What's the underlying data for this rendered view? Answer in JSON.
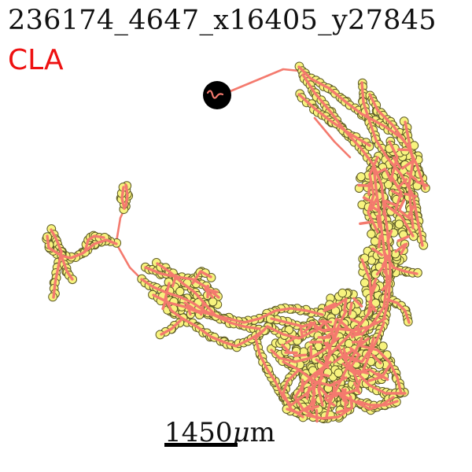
{
  "header": {
    "specimen_id": "236174_4647_x16405_y27845",
    "region_label": "CLA"
  },
  "scale_bar": {
    "value": "1450",
    "unit_prefix": "μ",
    "unit_suffix": "m"
  },
  "colors": {
    "region_label": "#ee1111",
    "neurite": "#f47a6e",
    "node_fill": "#f7f37e",
    "node_stroke": "#5d5a26",
    "soma": "#000000",
    "scale_bar": "#000000"
  }
}
